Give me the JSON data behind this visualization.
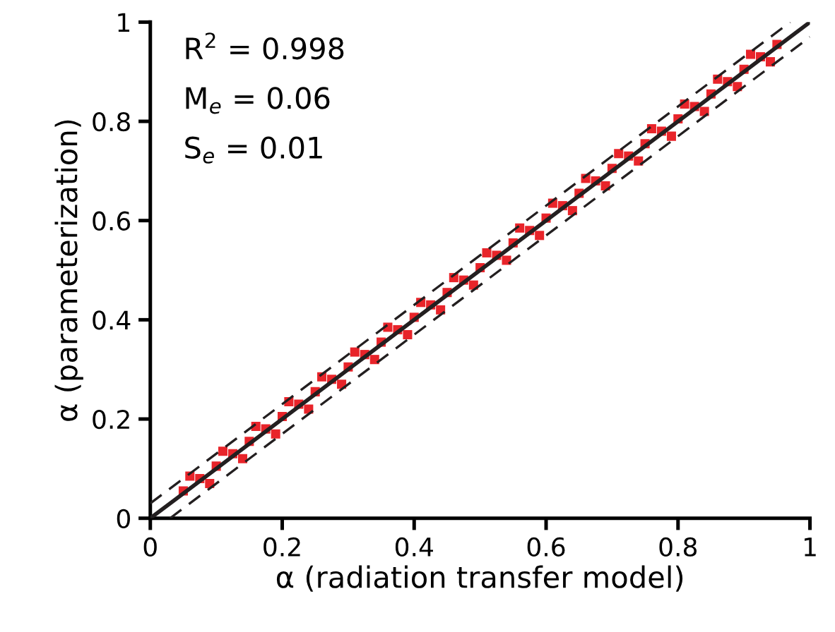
{
  "chart_data": {
    "type": "scatter",
    "xlabel": "α (radiation transfer model)",
    "ylabel": "α (parameterization)",
    "xlim": [
      0,
      1
    ],
    "ylim": [
      0,
      1
    ],
    "xticks": [
      0,
      0.2,
      0.4,
      0.6,
      0.8,
      1
    ],
    "yticks": [
      0,
      0.2,
      0.4,
      0.6,
      0.8,
      1
    ],
    "grid": false,
    "legend": false,
    "annotations": [
      "R$^{2}$ = 0.998",
      "M$_{e}$ = 0.06",
      "S$_{e}$ = 0.01"
    ],
    "series": [
      {
        "color": "#e8242a",
        "marker": "square",
        "x": [
          0.05,
          0.075,
          0.1,
          0.125,
          0.15,
          0.175,
          0.2,
          0.225,
          0.25,
          0.275,
          0.3,
          0.325,
          0.35,
          0.375,
          0.4,
          0.425,
          0.45,
          0.475,
          0.5,
          0.525,
          0.55,
          0.575,
          0.6,
          0.625,
          0.65,
          0.675,
          0.7,
          0.725,
          0.75,
          0.775,
          0.8,
          0.825,
          0.85,
          0.875,
          0.9,
          0.925,
          0.95,
          0.06,
          0.11,
          0.16,
          0.21,
          0.26,
          0.31,
          0.36,
          0.41,
          0.46,
          0.51,
          0.56,
          0.61,
          0.66,
          0.71,
          0.76,
          0.81,
          0.86,
          0.91,
          0.09,
          0.14,
          0.19,
          0.24,
          0.29,
          0.34,
          0.39,
          0.44,
          0.49,
          0.54,
          0.59,
          0.64,
          0.69,
          0.74,
          0.79,
          0.84,
          0.89,
          0.94
        ],
        "values": [
          0.055,
          0.08,
          0.105,
          0.13,
          0.155,
          0.18,
          0.205,
          0.23,
          0.255,
          0.28,
          0.305,
          0.33,
          0.355,
          0.38,
          0.405,
          0.43,
          0.455,
          0.48,
          0.505,
          0.53,
          0.555,
          0.58,
          0.605,
          0.63,
          0.655,
          0.68,
          0.705,
          0.73,
          0.755,
          0.78,
          0.805,
          0.83,
          0.855,
          0.88,
          0.905,
          0.93,
          0.955,
          0.085,
          0.135,
          0.185,
          0.235,
          0.285,
          0.335,
          0.385,
          0.435,
          0.485,
          0.535,
          0.585,
          0.635,
          0.685,
          0.735,
          0.785,
          0.835,
          0.885,
          0.935,
          0.07,
          0.12,
          0.17,
          0.22,
          0.27,
          0.32,
          0.37,
          0.42,
          0.47,
          0.52,
          0.57,
          0.62,
          0.67,
          0.72,
          0.77,
          0.82,
          0.87,
          0.92
        ]
      },
      {
        "type": "line",
        "color": "#231f20",
        "line_style": "solid",
        "marker": "none",
        "x": [
          0,
          1
        ],
        "values": [
          0,
          1
        ]
      },
      {
        "type": "line",
        "color": "#231f20",
        "line_style": "dashed",
        "marker": "none",
        "x": [
          0,
          0.97
        ],
        "values": [
          0.03,
          1
        ]
      },
      {
        "type": "line",
        "color": "#231f20",
        "line_style": "dashed",
        "marker": "none",
        "x": [
          0.03,
          1
        ],
        "values": [
          0,
          0.97
        ]
      }
    ]
  }
}
